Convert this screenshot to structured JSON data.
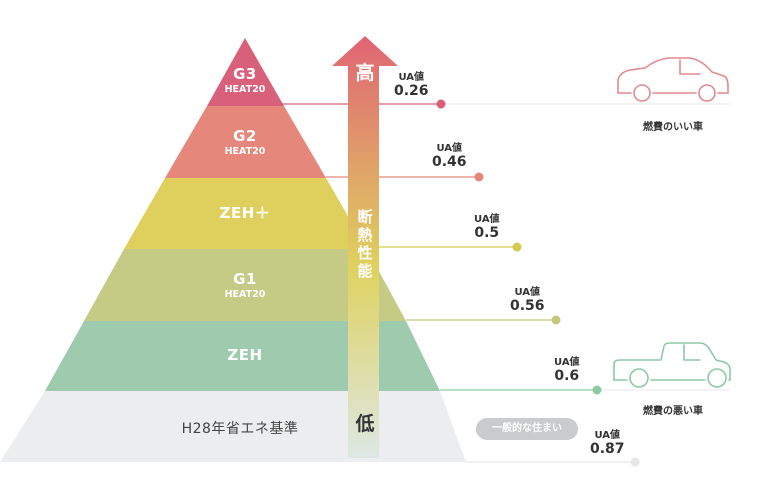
{
  "tiers": [
    {
      "id": "g3",
      "name": "G3",
      "sub": "HEAT20",
      "color": "#d9607a"
    },
    {
      "id": "g2",
      "name": "G2",
      "sub": "HEAT20",
      "color": "#e5877b"
    },
    {
      "id": "zehplus",
      "name": "ZEH＋",
      "sub": "",
      "color": "#dfd05e"
    },
    {
      "id": "g1",
      "name": "G1",
      "sub": "HEAT20",
      "color": "#c5cb84"
    },
    {
      "id": "zeh",
      "name": "ZEH",
      "sub": "",
      "color": "#9ecbae"
    },
    {
      "id": "h28",
      "name": "H28年省エネ基準",
      "sub": "",
      "color": "#ecedee"
    }
  ],
  "ua": {
    "label": "UA値",
    "values": [
      "0.26",
      "0.46",
      "0.5",
      "0.56",
      "0.6",
      "0.87"
    ],
    "dot_colors": [
      "#d9607a",
      "#e5877b",
      "#d6c94f",
      "#c2c87a",
      "#8ec9a2",
      "#e6e7e8"
    ]
  },
  "arrow": {
    "top": "高",
    "middle": "断熱性能",
    "bottom": "低",
    "colors": {
      "top": "#e06474",
      "mid": "#dfd25f",
      "bottom": "#dde8e4"
    }
  },
  "cars": {
    "good_caption": "燃費のいい車",
    "bad_caption": "燃費の悪い車",
    "good_color": "#e28a8f",
    "bad_color": "#8ec9a6"
  },
  "badge": "一般的な住まい"
}
